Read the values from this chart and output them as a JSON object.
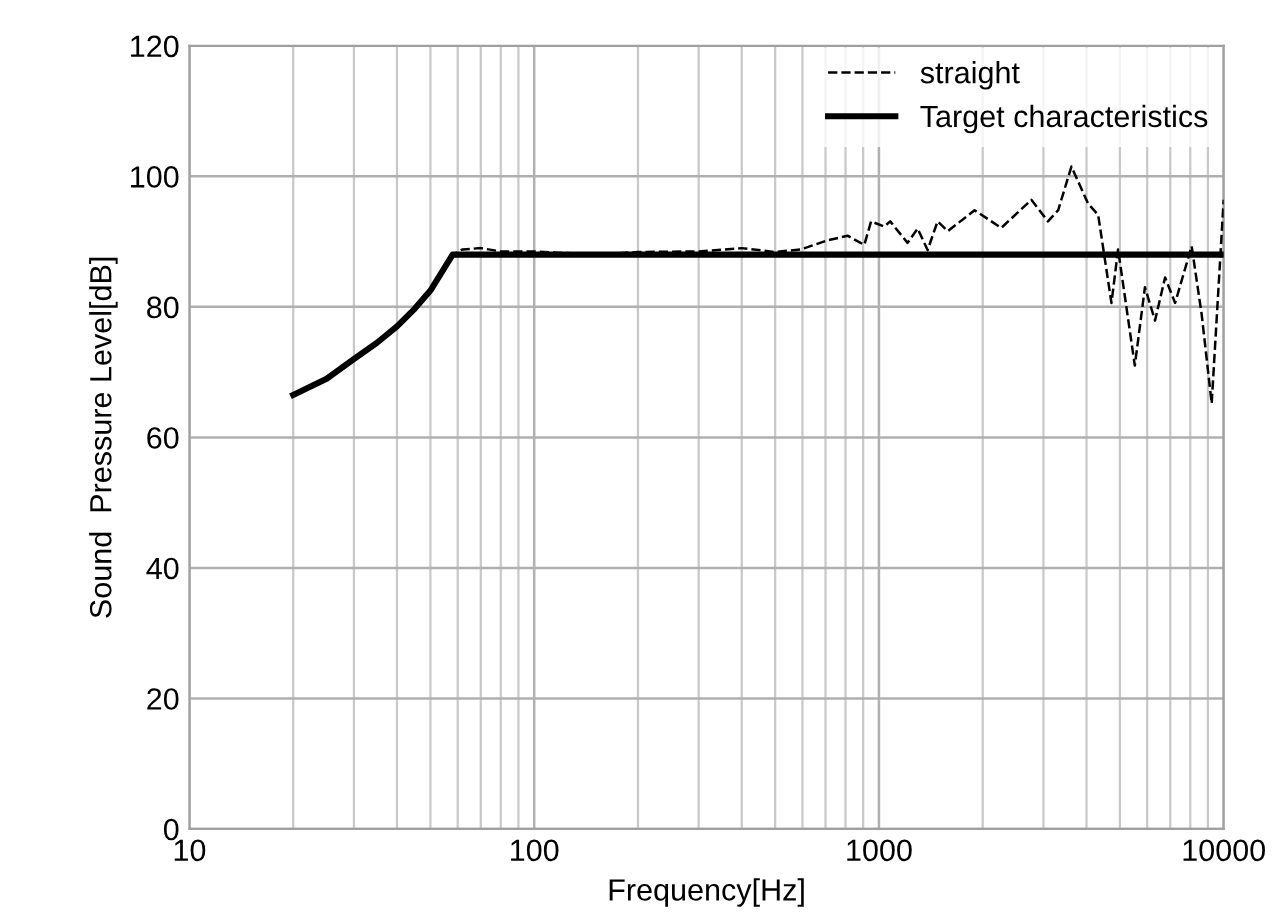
{
  "chart_data": {
    "type": "line",
    "xlabel": "Frequency[Hz]",
    "ylabel": "Sound  Pressure Level[dB]",
    "log": "x",
    "xlim": [
      10,
      10000
    ],
    "xticks": [
      10,
      100,
      1000,
      10000
    ],
    "ylim": [
      0,
      120
    ],
    "yticks": [
      0,
      20,
      40,
      60,
      80,
      100,
      120
    ],
    "grid": true,
    "legend": "top right",
    "marker": "none",
    "series": [
      {
        "name": "straight",
        "color": "#000000",
        "line_style": "dashed",
        "x": [
          20,
          25,
          30,
          40,
          50,
          58,
          62,
          70,
          80,
          100,
          150,
          200,
          300,
          400,
          500,
          593,
          710,
          811,
          907,
          949,
          1037,
          1078,
          1211,
          1295,
          1384,
          1480,
          1584,
          1894,
          2264,
          2768,
          3093,
          3310,
          3617,
          4044,
          4324,
          4726,
          4940,
          5524,
          5910,
          6322,
          6761,
          7230,
          8075,
          8635,
          9230,
          10000
        ],
        "values": [
          66.5,
          69,
          72,
          77,
          82.5,
          88,
          88.8,
          89,
          88.5,
          88.5,
          88,
          88.4,
          88.5,
          89,
          88.4,
          88.8,
          90.2,
          90.9,
          89.5,
          93.1,
          92.3,
          93.1,
          89.8,
          92.0,
          88.7,
          93.1,
          91.6,
          94.8,
          92.1,
          96.4,
          93.1,
          94.8,
          101.5,
          95.8,
          94.1,
          80.6,
          88.8,
          71,
          83,
          77.9,
          84.5,
          80.6,
          89.3,
          78.8,
          65.2,
          96.4
        ]
      },
      {
        "name": "Target characteristics",
        "color": "#000000",
        "line_style": "solid",
        "x": [
          20,
          25,
          30,
          35,
          40,
          45,
          50,
          58,
          10000
        ],
        "values": [
          66.5,
          69,
          72,
          74.5,
          77,
          79.7,
          82.5,
          88,
          88
        ]
      }
    ]
  }
}
